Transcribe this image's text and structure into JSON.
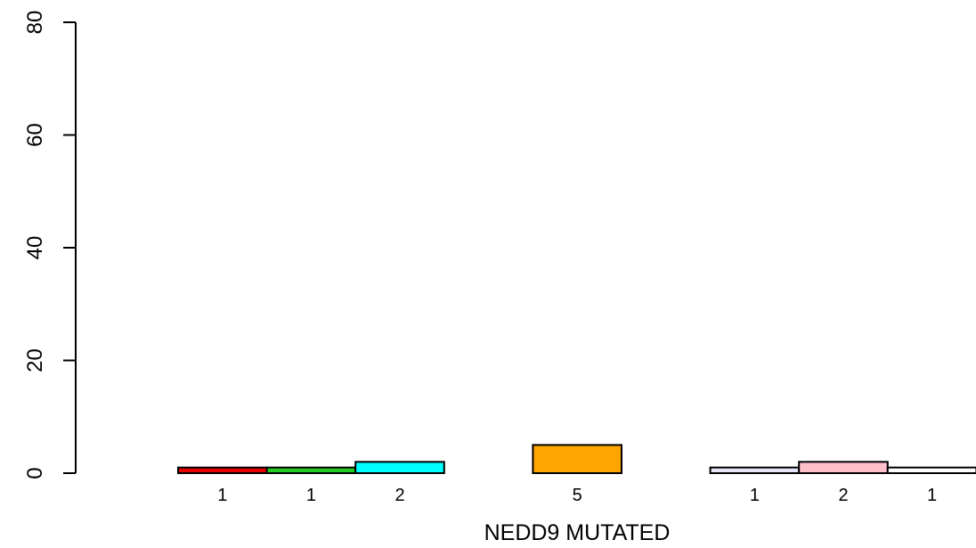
{
  "chart_data": {
    "type": "bar",
    "xlabel": "NEDD9 MUTATED",
    "ylabel": "",
    "ylim": [
      0,
      80
    ],
    "yticks": [
      0,
      20,
      40,
      60,
      80
    ],
    "grid": false,
    "slots": [
      {
        "value": 1,
        "label": "1",
        "color": "#e60000"
      },
      {
        "value": 1,
        "label": "1",
        "color": "#22cc22"
      },
      {
        "value": 2,
        "label": "2",
        "color": "#00ffff"
      },
      {
        "value": null,
        "label": "",
        "color": ""
      },
      {
        "value": 5,
        "label": "5",
        "color": "#ffa500"
      },
      {
        "value": null,
        "label": "",
        "color": ""
      },
      {
        "value": 1,
        "label": "1",
        "color": "#e6e6fa"
      },
      {
        "value": 2,
        "label": "2",
        "color": "#ffc0cb"
      },
      {
        "value": 1,
        "label": "1",
        "color": "#ffffff"
      }
    ]
  }
}
